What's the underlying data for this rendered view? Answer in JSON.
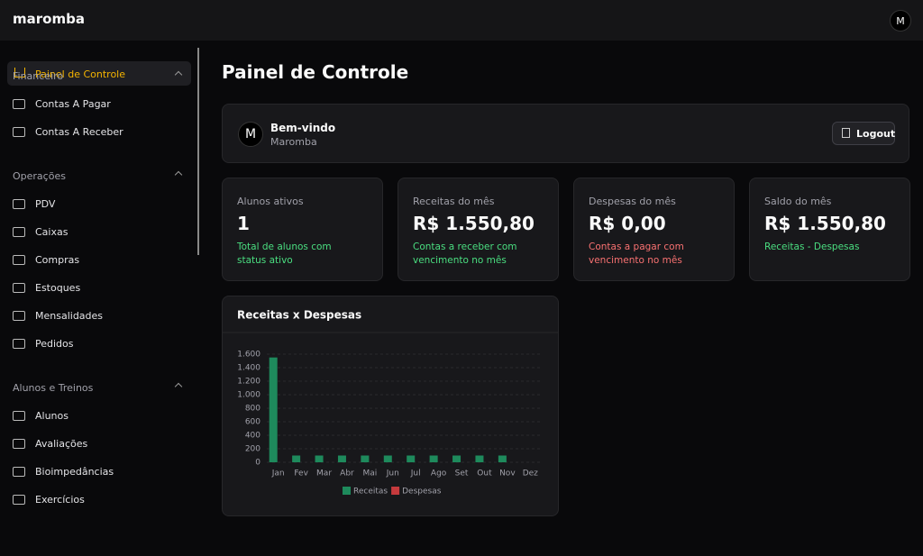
{
  "header": {
    "brand": "maromba",
    "avatar": "M"
  },
  "sidebar": {
    "active": "Painel de Controle",
    "sections": [
      {
        "title": "Financeiro",
        "items": [
          "Contas A Pagar",
          "Contas A Receber"
        ]
      },
      {
        "title": "Operações",
        "items": [
          "PDV",
          "Caixas",
          "Compras",
          "Estoques",
          "Mensalidades",
          "Pedidos"
        ]
      },
      {
        "title": "Alunos e Treinos",
        "items": [
          "Alunos",
          "Avaliações",
          "Bioimpedâncias",
          "Exercícios"
        ]
      }
    ]
  },
  "main": {
    "title": "Painel de Controle",
    "welcome": {
      "avatar": "M",
      "title": "Bem-vindo",
      "name": "Maromba",
      "logout": "Logout"
    },
    "cards": [
      {
        "label": "Alunos ativos",
        "value": "1",
        "note": "Total de alunos com status ativo",
        "tone": "green"
      },
      {
        "label": "Receitas do mês",
        "value": "R$ 1.550,80",
        "note": "Contas a receber com vencimento no mês",
        "tone": "green"
      },
      {
        "label": "Despesas do mês",
        "value": "R$ 0,00",
        "note": "Contas a pagar com vencimento no mês",
        "tone": "red"
      },
      {
        "label": "Saldo do mês",
        "value": "R$ 1.550,80",
        "note": "Receitas - Despesas",
        "tone": "green"
      }
    ]
  },
  "chart_data": {
    "type": "bar",
    "title": "Receitas x Despesas",
    "categories": [
      "Jan",
      "Fev",
      "Mar",
      "Abr",
      "Mai",
      "Jun",
      "Jul",
      "Ago",
      "Set",
      "Out",
      "Nov",
      "Dez"
    ],
    "series": [
      {
        "name": "Receitas",
        "color": "#1e8a5c",
        "values": [
          1550.8,
          100,
          100,
          100,
          100,
          100,
          100,
          100,
          100,
          100,
          100,
          0
        ]
      },
      {
        "name": "Despesas",
        "color": "#c53a3d",
        "values": [
          0,
          0,
          0,
          0,
          0,
          0,
          0,
          0,
          0,
          0,
          0,
          0
        ]
      }
    ],
    "ylim": [
      0,
      1600
    ],
    "yticks": [
      0,
      200,
      400,
      600,
      800,
      {
        "value": 1000,
        "label": "1.000"
      },
      {
        "value": 1200,
        "label": "1.200"
      },
      {
        "value": 1400,
        "label": "1.400"
      },
      {
        "value": 1600,
        "label": "1.600"
      }
    ],
    "grid": true
  }
}
